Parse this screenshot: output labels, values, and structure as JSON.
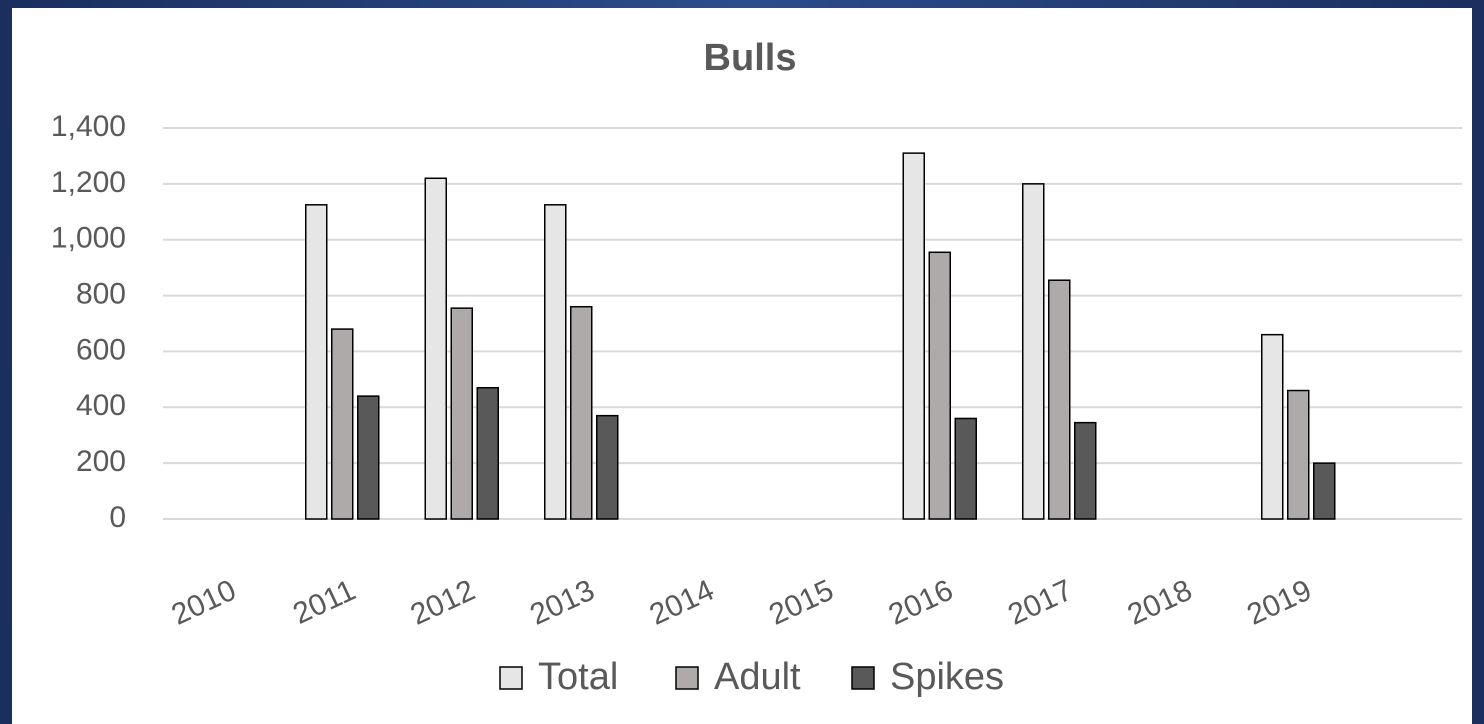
{
  "chart_data": {
    "type": "bar",
    "title": "Bulls",
    "categories": [
      "2010",
      "2011",
      "2012",
      "2013",
      "2014",
      "2015",
      "2016",
      "2017",
      "2018",
      "2019"
    ],
    "series": [
      {
        "name": "Total",
        "color": "#e7e6e6",
        "values": [
          null,
          1125,
          1220,
          1125,
          null,
          null,
          1310,
          1200,
          null,
          660
        ]
      },
      {
        "name": "Adult",
        "color": "#aeaaaa",
        "values": [
          null,
          680,
          755,
          760,
          null,
          null,
          955,
          855,
          null,
          460
        ]
      },
      {
        "name": "Spikes",
        "color": "#595959",
        "values": [
          null,
          440,
          470,
          370,
          null,
          null,
          360,
          345,
          null,
          200
        ]
      }
    ],
    "ylim": [
      0,
      1400
    ],
    "yticks": [
      0,
      200,
      400,
      600,
      800,
      {
        "value": 1000,
        "label": "1,000"
      },
      {
        "value": 1200,
        "label": "1,200"
      },
      {
        "value": 1400,
        "label": "1,400"
      }
    ],
    "grid": true,
    "legend": "bottom"
  }
}
